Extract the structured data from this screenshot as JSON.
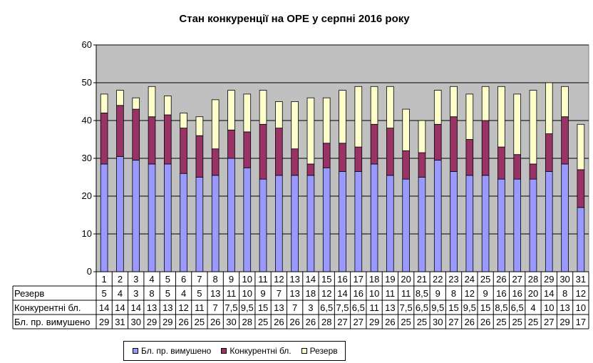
{
  "chart_data": {
    "type": "bar",
    "stacked": true,
    "title": "Стан конкуренції на ОРЕ  у серпні 2016 року",
    "categories": [
      "1",
      "2",
      "3",
      "4",
      "5",
      "6",
      "7",
      "8",
      "9",
      "10",
      "11",
      "12",
      "13",
      "14",
      "15",
      "16",
      "17",
      "18",
      "19",
      "20",
      "21",
      "22",
      "23",
      "24",
      "25",
      "26",
      "27",
      "28",
      "29",
      "30",
      "31"
    ],
    "series": [
      {
        "name": "Бл. пр. вимушено",
        "color": "#9999ff",
        "values": [
          28.5,
          30.5,
          29.5,
          28.5,
          28.5,
          26,
          25,
          25.5,
          30,
          27.5,
          24.5,
          25.5,
          25.5,
          25.5,
          27.5,
          26.5,
          26.5,
          28.5,
          25.5,
          24.5,
          25,
          29.5,
          26.5,
          25.5,
          25.5,
          24.5,
          24.5,
          24.5,
          26.5,
          28.5,
          17
        ]
      },
      {
        "name": "Конкурентні бл.",
        "color": "#993366",
        "values": [
          13.5,
          13.5,
          13.5,
          12.5,
          13,
          12,
          11,
          7,
          7.5,
          9.5,
          14.5,
          12.5,
          7,
          3,
          6.5,
          7.5,
          6.5,
          10.5,
          12.5,
          7.5,
          6.5,
          9.5,
          14.5,
          9.5,
          14.5,
          8.5,
          6.5,
          4,
          10,
          12.5,
          10
        ]
      },
      {
        "name": "Резерв",
        "color": "#ffffcc",
        "values": [
          5,
          4,
          3,
          8,
          5,
          4,
          5,
          13,
          10.5,
          10,
          9,
          7,
          12.5,
          17.5,
          12,
          14,
          16,
          10,
          11,
          11,
          8.5,
          9,
          8,
          12,
          9,
          16,
          16,
          19.5,
          13.5,
          8,
          12
        ]
      }
    ],
    "table_labels": [
      {
        "name": "Резерв",
        "values": [
          "5",
          "4",
          "3",
          "8",
          "5",
          "4",
          "5",
          "13",
          "11",
          "10",
          "9",
          "7",
          "13",
          "18",
          "12",
          "14",
          "16",
          "10",
          "11",
          "11",
          "8,5",
          "9",
          "8",
          "12",
          "9",
          "16",
          "16",
          "20",
          "14",
          "8",
          "12"
        ]
      },
      {
        "name": "Конкурентні бл.",
        "values": [
          "14",
          "14",
          "14",
          "13",
          "13",
          "12",
          "11",
          "7",
          "7,5",
          "9,5",
          "15",
          "13",
          "7",
          "3",
          "6,5",
          "7,5",
          "6,5",
          "11",
          "13",
          "7,5",
          "6,5",
          "9,5",
          "15",
          "9,5",
          "15",
          "8,5",
          "6,5",
          "4",
          "10",
          "13",
          "10"
        ]
      },
      {
        "name": "Бл. пр. вимушено",
        "values": [
          "29",
          "31",
          "30",
          "29",
          "29",
          "26",
          "25",
          "26",
          "30",
          "28",
          "25",
          "26",
          "26",
          "26",
          "28",
          "27",
          "27",
          "29",
          "26",
          "25",
          "25",
          "30",
          "27",
          "26",
          "26",
          "25",
          "25",
          "25",
          "27",
          "29",
          "17"
        ]
      }
    ],
    "y_ticks": [
      "0",
      "10",
      "20",
      "30",
      "40",
      "50",
      "60"
    ],
    "ylim": [
      0,
      60
    ],
    "plot_background": "#c0c0c0",
    "grid": true,
    "legend_position": "bottom",
    "xlabel": "",
    "ylabel": ""
  }
}
